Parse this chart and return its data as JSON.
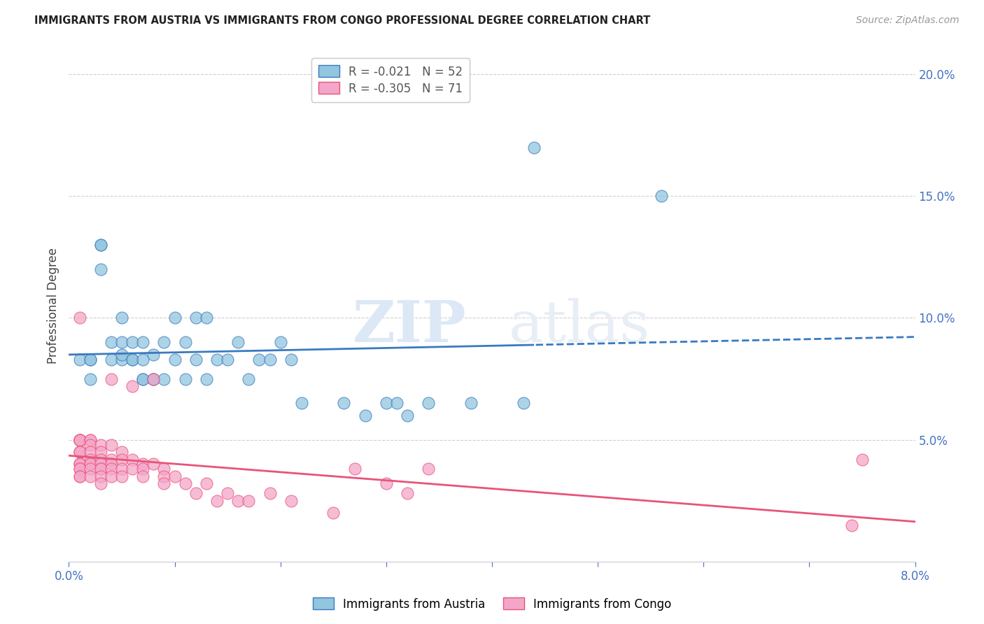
{
  "title": "IMMIGRANTS FROM AUSTRIA VS IMMIGRANTS FROM CONGO PROFESSIONAL DEGREE CORRELATION CHART",
  "source": "Source: ZipAtlas.com",
  "ylabel": "Professional Degree",
  "legend_label_1": "Immigrants from Austria",
  "legend_label_2": "Immigrants from Congo",
  "R1": -0.021,
  "N1": 52,
  "R2": -0.305,
  "N2": 71,
  "color_austria": "#92c5de",
  "color_congo": "#f4a6c8",
  "color_austria_line": "#3a7abf",
  "color_congo_line": "#e8547a",
  "color_axis_label": "#4472c4",
  "xlim": [
    0.0,
    0.08
  ],
  "ylim": [
    0.0,
    0.21
  ],
  "x_ticks": [
    0.0,
    0.01,
    0.02,
    0.03,
    0.04,
    0.05,
    0.06,
    0.07,
    0.08
  ],
  "x_tick_labels": [
    "0.0%",
    "",
    "",
    "",
    "",
    "",
    "",
    "",
    "8.0%"
  ],
  "y_ticks": [
    0.0,
    0.05,
    0.1,
    0.15,
    0.2
  ],
  "y_tick_labels_right": [
    "",
    "5.0%",
    "10.0%",
    "15.0%",
    "20.0%"
  ],
  "austria_x": [
    0.001,
    0.002,
    0.002,
    0.002,
    0.003,
    0.003,
    0.003,
    0.004,
    0.004,
    0.005,
    0.005,
    0.005,
    0.005,
    0.006,
    0.006,
    0.006,
    0.007,
    0.007,
    0.007,
    0.007,
    0.008,
    0.008,
    0.008,
    0.009,
    0.009,
    0.01,
    0.01,
    0.011,
    0.011,
    0.012,
    0.012,
    0.013,
    0.013,
    0.014,
    0.015,
    0.016,
    0.017,
    0.018,
    0.019,
    0.02,
    0.021,
    0.022,
    0.026,
    0.028,
    0.03,
    0.031,
    0.032,
    0.034,
    0.038,
    0.043,
    0.044,
    0.056
  ],
  "austria_y": [
    0.083,
    0.083,
    0.083,
    0.075,
    0.13,
    0.13,
    0.12,
    0.083,
    0.09,
    0.083,
    0.085,
    0.09,
    0.1,
    0.083,
    0.083,
    0.09,
    0.075,
    0.075,
    0.083,
    0.09,
    0.075,
    0.075,
    0.085,
    0.075,
    0.09,
    0.083,
    0.1,
    0.075,
    0.09,
    0.083,
    0.1,
    0.075,
    0.1,
    0.083,
    0.083,
    0.09,
    0.075,
    0.083,
    0.083,
    0.09,
    0.083,
    0.065,
    0.065,
    0.06,
    0.065,
    0.065,
    0.06,
    0.065,
    0.065,
    0.065,
    0.17,
    0.15
  ],
  "congo_x": [
    0.001,
    0.001,
    0.001,
    0.001,
    0.001,
    0.001,
    0.001,
    0.001,
    0.001,
    0.001,
    0.001,
    0.001,
    0.001,
    0.001,
    0.001,
    0.001,
    0.002,
    0.002,
    0.002,
    0.002,
    0.002,
    0.002,
    0.002,
    0.002,
    0.002,
    0.003,
    0.003,
    0.003,
    0.003,
    0.003,
    0.003,
    0.003,
    0.003,
    0.004,
    0.004,
    0.004,
    0.004,
    0.004,
    0.004,
    0.005,
    0.005,
    0.005,
    0.005,
    0.006,
    0.006,
    0.006,
    0.007,
    0.007,
    0.007,
    0.008,
    0.008,
    0.009,
    0.009,
    0.009,
    0.01,
    0.011,
    0.012,
    0.013,
    0.014,
    0.015,
    0.016,
    0.017,
    0.019,
    0.021,
    0.025,
    0.027,
    0.03,
    0.032,
    0.034,
    0.074,
    0.075
  ],
  "congo_y": [
    0.05,
    0.05,
    0.05,
    0.05,
    0.05,
    0.045,
    0.045,
    0.045,
    0.04,
    0.04,
    0.04,
    0.038,
    0.038,
    0.035,
    0.035,
    0.1,
    0.05,
    0.05,
    0.048,
    0.045,
    0.042,
    0.04,
    0.04,
    0.038,
    0.035,
    0.048,
    0.045,
    0.042,
    0.04,
    0.038,
    0.038,
    0.035,
    0.032,
    0.048,
    0.042,
    0.04,
    0.038,
    0.035,
    0.075,
    0.045,
    0.042,
    0.038,
    0.035,
    0.042,
    0.038,
    0.072,
    0.04,
    0.038,
    0.035,
    0.04,
    0.075,
    0.038,
    0.035,
    0.032,
    0.035,
    0.032,
    0.028,
    0.032,
    0.025,
    0.028,
    0.025,
    0.025,
    0.028,
    0.025,
    0.02,
    0.038,
    0.032,
    0.028,
    0.038,
    0.015,
    0.042
  ],
  "watermark_zip": "ZIP",
  "watermark_atlas": "atlas",
  "background_color": "#ffffff",
  "grid_color": "#d0d0d0",
  "trendline_split_x": 0.044
}
